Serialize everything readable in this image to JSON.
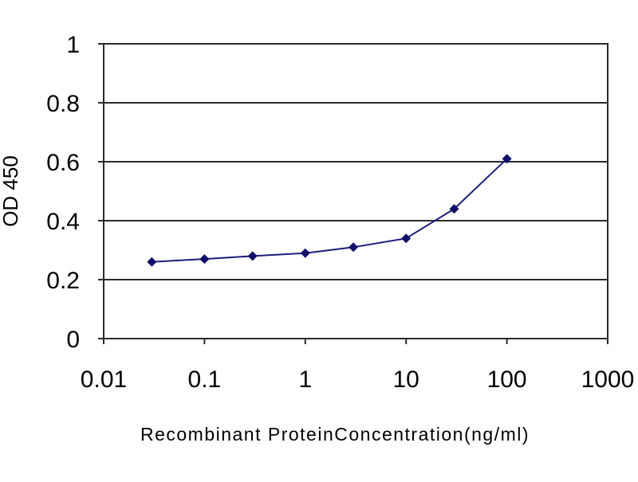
{
  "chart_data": {
    "type": "line",
    "title": "",
    "xlabel": "Recombinant ProteinConcentration(ng/ml)",
    "ylabel": "OD 450",
    "x_scale": "log",
    "xlim": [
      0.01,
      1000
    ],
    "ylim": [
      0,
      1
    ],
    "x_ticks": [
      "0.01",
      "0.1",
      "1",
      "10",
      "100",
      "1000"
    ],
    "y_ticks": [
      "0",
      "0.2",
      "0.4",
      "0.6",
      "0.8",
      "1"
    ],
    "grid": "horizontal",
    "legend": "none",
    "series": [
      {
        "x": [
          0.03,
          0.1,
          0.3,
          1,
          3,
          10,
          30,
          100
        ],
        "y": [
          0.26,
          0.27,
          0.28,
          0.29,
          0.31,
          0.34,
          0.44,
          0.61
        ]
      }
    ],
    "colors": {
      "line": "#1c1c7a",
      "marker": "#10106a",
      "grid": "#2a2a2a",
      "axis": "#000000",
      "background": "#ffffff"
    }
  }
}
